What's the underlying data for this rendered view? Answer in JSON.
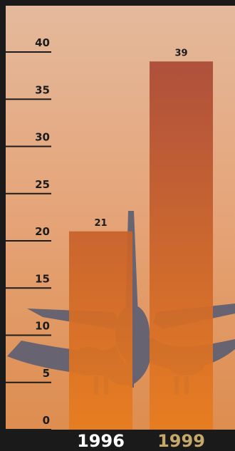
{
  "chart_data": {
    "type": "bar",
    "categories": [
      "1996",
      "1999"
    ],
    "values": [
      21,
      39
    ],
    "ylim": [
      0,
      40
    ],
    "yticks": [
      0,
      5,
      10,
      15,
      20,
      25,
      30,
      35,
      40
    ],
    "data_labels": [
      "21",
      "39"
    ],
    "grid": false,
    "title": "",
    "xlabel": "",
    "ylabel": ""
  },
  "colors": {
    "frame": "#1a1a1a",
    "sky_top": "#e4b99c",
    "sky_mid": "#e5a478",
    "sky_bottom": "#dd8d4f",
    "bar_top": "#a94836",
    "bar_bottom": "#e87c1e",
    "category_label_1996": "#ffffff",
    "category_label_1999": "#c6a86a",
    "tick_text": "#1c1c1c",
    "airplane": "#5d5f73"
  }
}
